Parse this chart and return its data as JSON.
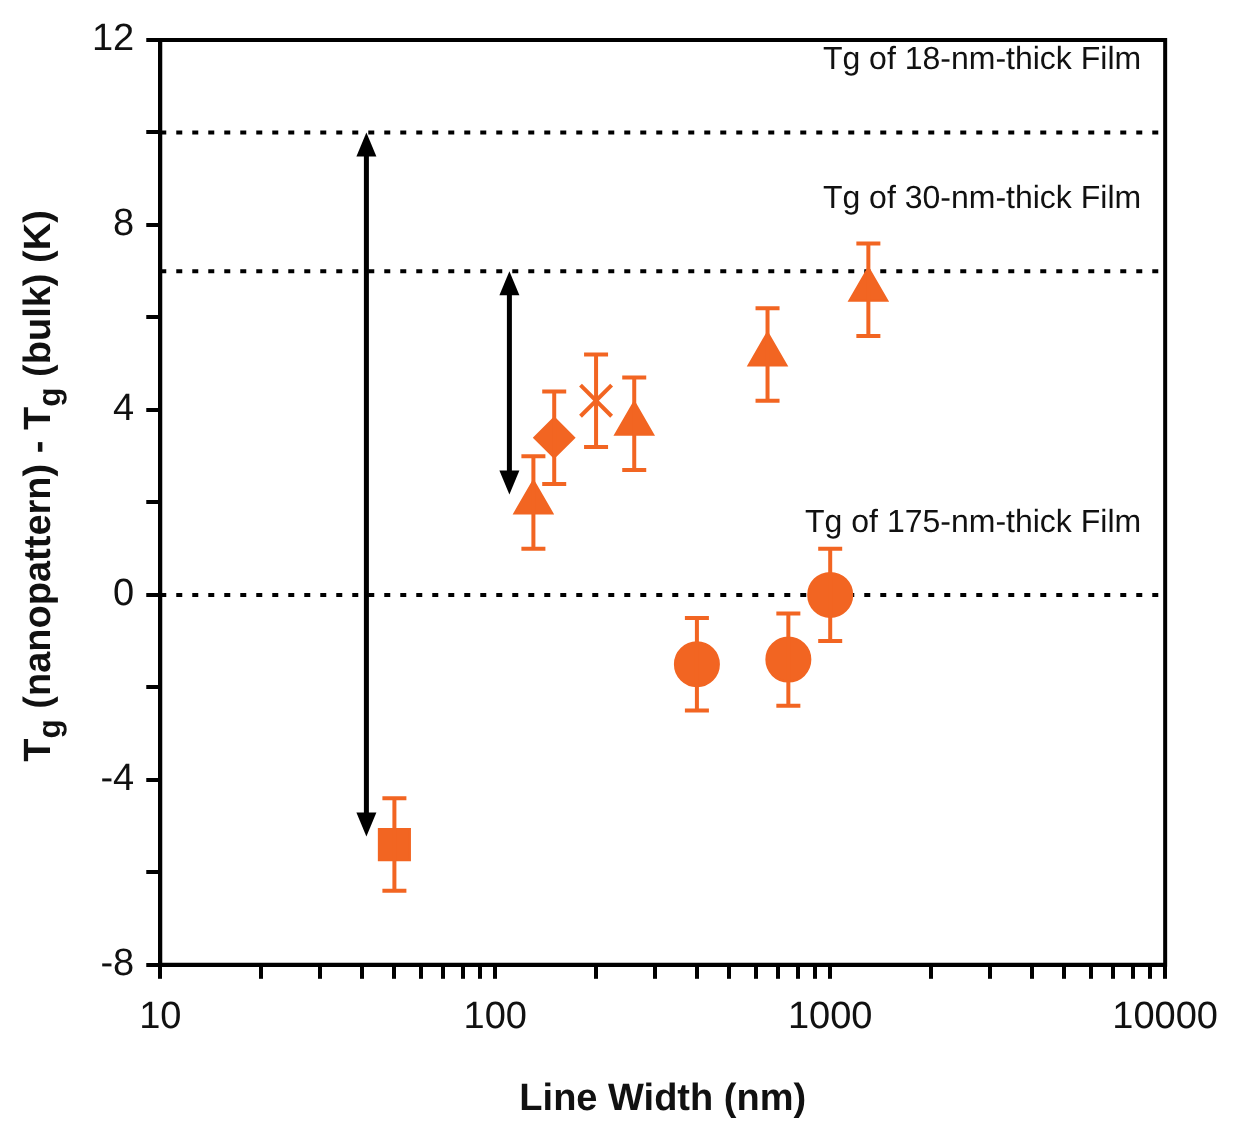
{
  "chart_data": {
    "type": "scatter",
    "xlabel": "Line Width (nm)",
    "ylabel": "T$_{g}$ (nanopattern) - T$_{g}$ (bulk)  (K)",
    "log": "x",
    "grid": false,
    "legend": false,
    "xlim": [
      10,
      10000
    ],
    "ylim": [
      -8,
      12
    ],
    "xticks": [
      10,
      {
        "value": 20,
        "label": null
      },
      {
        "value": 30,
        "label": null
      },
      {
        "value": 40,
        "label": null
      },
      {
        "value": 50,
        "label": null
      },
      {
        "value": 60,
        "label": null
      },
      {
        "value": 70,
        "label": null
      },
      {
        "value": 80,
        "label": null
      },
      {
        "value": 90,
        "label": null
      },
      100,
      {
        "value": 200,
        "label": null
      },
      {
        "value": 300,
        "label": null
      },
      {
        "value": 400,
        "label": null
      },
      {
        "value": 500,
        "label": null
      },
      {
        "value": 600,
        "label": null
      },
      {
        "value": 700,
        "label": null
      },
      {
        "value": 800,
        "label": null
      },
      {
        "value": 900,
        "label": null
      },
      1000,
      {
        "value": 2000,
        "label": null
      },
      {
        "value": 3000,
        "label": null
      },
      {
        "value": 4000,
        "label": null
      },
      {
        "value": 5000,
        "label": null
      },
      {
        "value": 6000,
        "label": null
      },
      {
        "value": 7000,
        "label": null
      },
      {
        "value": 8000,
        "label": null
      },
      {
        "value": 9000,
        "label": null
      },
      10000
    ],
    "yticks": [
      -8,
      {
        "value": -6,
        "label": null
      },
      -4,
      {
        "value": -2,
        "label": null
      },
      0,
      {
        "value": 2,
        "label": null
      },
      4,
      {
        "value": 6,
        "label": null
      },
      8,
      {
        "value": 10,
        "label": null
      },
      12
    ],
    "ref_lines": [
      {
        "axis": "y",
        "value": 10,
        "label": "Tg of 18-nm-thick Film",
        "color": "#000000",
        "line_style": "dotted"
      },
      {
        "axis": "y",
        "value": 7,
        "label": "Tg of 30-nm-thick Film",
        "color": "#000000",
        "line_style": "dotted"
      },
      {
        "axis": "y",
        "value": 0,
        "label": "Tg of 175-nm-thick Film",
        "color": "#000000",
        "line_style": "dotted"
      }
    ],
    "series": [
      {
        "color": "#f26522",
        "marker": "square",
        "x": [
          50
        ],
        "values": [
          -5.4
        ],
        "errors": [
          1
        ]
      },
      {
        "color": "#f26522",
        "marker": "triangle",
        "x": [
          130,
          260,
          650,
          1300
        ],
        "values": [
          2.0,
          3.7,
          5.2,
          6.6
        ],
        "errors": [
          1,
          1,
          1,
          1
        ]
      },
      {
        "color": "#f26522",
        "marker": "diamond",
        "x": [
          150
        ],
        "values": [
          3.4
        ],
        "errors": [
          1
        ]
      },
      {
        "color": "#f26522",
        "marker": "cross",
        "x": [
          200
        ],
        "values": [
          4.2
        ],
        "errors": [
          1
        ]
      },
      {
        "color": "#f26522",
        "marker": "circle",
        "x": [
          400,
          750,
          1000
        ],
        "values": [
          -1.5,
          -1.4,
          0
        ],
        "errors": [
          1,
          1,
          1
        ]
      }
    ]
  }
}
